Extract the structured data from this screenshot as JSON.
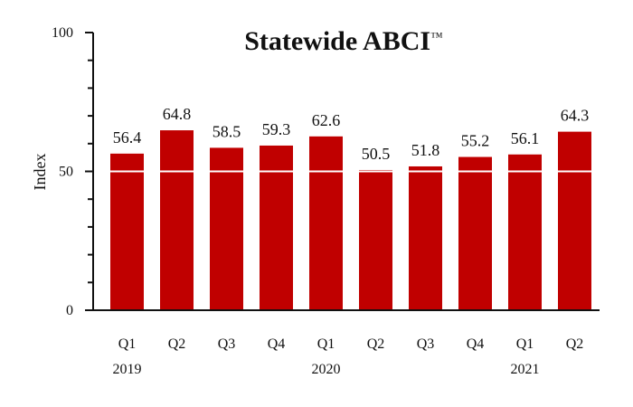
{
  "chart_data": {
    "type": "bar",
    "title": "Statewide ABCI",
    "title_mark": "™",
    "ylabel": "Index",
    "xlabel": "",
    "ylim": [
      0,
      100
    ],
    "yticks": [
      0,
      50,
      100
    ],
    "grid": "white line at 50 across bars",
    "categories": [
      "Q1",
      "Q2",
      "Q3",
      "Q4",
      "Q1",
      "Q2",
      "Q3",
      "Q4",
      "Q1",
      "Q2"
    ],
    "years": [
      {
        "label": "2019",
        "category_index": 0
      },
      {
        "label": "2020",
        "category_index": 4
      },
      {
        "label": "2021",
        "category_index": 8
      }
    ],
    "values": [
      56.4,
      64.8,
      58.5,
      59.3,
      62.6,
      50.5,
      51.8,
      55.2,
      56.1,
      64.3
    ],
    "colors": {
      "bar": "#c00000",
      "gridline": "#ffffff",
      "axis": "#111111"
    }
  }
}
